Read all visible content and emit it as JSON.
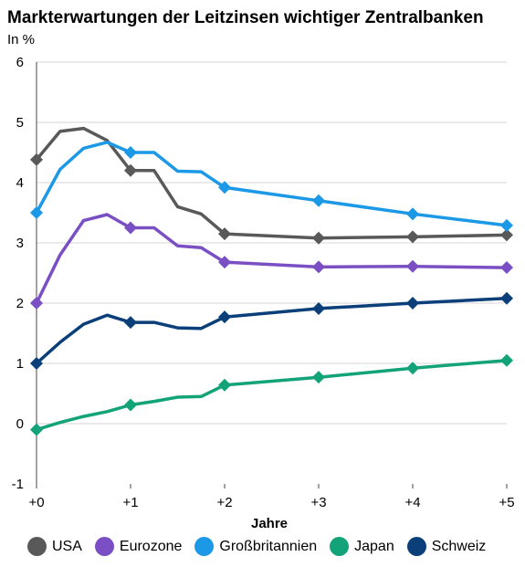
{
  "chart_data": {
    "type": "line",
    "title": "Markterwartungen der Leitzinsen wichtiger Zentralbanken",
    "unit_label": "In %",
    "xlabel": "Jahre",
    "ylabel": "",
    "ylim": [
      -1,
      6
    ],
    "xlim": [
      0,
      5
    ],
    "yticks": [
      -1,
      0,
      1,
      2,
      3,
      4,
      5,
      6
    ],
    "xticks": [
      {
        "value": 0,
        "label": "+0"
      },
      {
        "value": 1,
        "label": "+1"
      },
      {
        "value": 2,
        "label": "+2"
      },
      {
        "value": 3,
        "label": "+3"
      },
      {
        "value": 4,
        "label": "+4"
      },
      {
        "value": 5,
        "label": "+5"
      }
    ],
    "grid": "horizontal",
    "legend_position": "bottom",
    "series": [
      {
        "name": "USA",
        "color": "#595959",
        "x": [
          0,
          0.25,
          0.5,
          0.75,
          1,
          1.25,
          1.5,
          1.75,
          2,
          3,
          4,
          5
        ],
        "y": [
          4.38,
          4.85,
          4.9,
          4.7,
          4.2,
          4.2,
          3.6,
          3.48,
          3.15,
          3.08,
          3.1,
          3.13
        ],
        "marker_x": [
          0,
          1,
          2,
          3,
          4,
          5
        ]
      },
      {
        "name": "Eurozone",
        "color": "#7b4fc4",
        "x": [
          0,
          0.25,
          0.5,
          0.75,
          1,
          1.25,
          1.5,
          1.75,
          2,
          3,
          4,
          5
        ],
        "y": [
          2.0,
          2.8,
          3.37,
          3.47,
          3.25,
          3.25,
          2.95,
          2.92,
          2.68,
          2.6,
          2.61,
          2.59
        ],
        "marker_x": [
          0,
          1,
          2,
          3,
          4,
          5
        ]
      },
      {
        "name": "Großbritannien",
        "color": "#1b98e6",
        "x": [
          0,
          0.25,
          0.5,
          0.75,
          1,
          1.25,
          1.5,
          1.75,
          2,
          3,
          4,
          5
        ],
        "y": [
          3.5,
          4.22,
          4.57,
          4.67,
          4.5,
          4.5,
          4.19,
          4.18,
          3.92,
          3.7,
          3.48,
          3.29
        ],
        "marker_x": [
          0,
          1,
          2,
          3,
          4,
          5
        ]
      },
      {
        "name": "Japan",
        "color": "#13a378",
        "x": [
          0,
          0.25,
          0.5,
          0.75,
          1,
          1.25,
          1.5,
          1.75,
          2,
          3,
          4,
          5
        ],
        "y": [
          -0.1,
          0.02,
          0.12,
          0.2,
          0.31,
          0.37,
          0.44,
          0.45,
          0.64,
          0.77,
          0.92,
          1.05
        ],
        "marker_x": [
          0,
          1,
          2,
          3,
          4,
          5
        ]
      },
      {
        "name": "Schweiz",
        "color": "#0b3f7a",
        "x": [
          0,
          0.25,
          0.5,
          0.75,
          1,
          1.25,
          1.5,
          1.75,
          2,
          3,
          4,
          5
        ],
        "y": [
          1.0,
          1.35,
          1.65,
          1.8,
          1.68,
          1.68,
          1.59,
          1.58,
          1.77,
          1.91,
          2.0,
          2.08
        ],
        "marker_x": [
          0,
          1,
          2,
          3,
          4,
          5
        ]
      }
    ]
  }
}
